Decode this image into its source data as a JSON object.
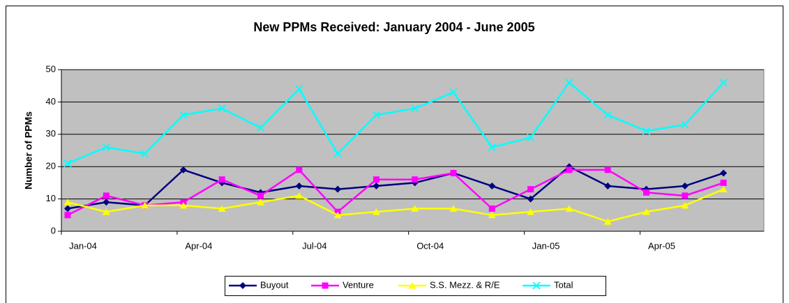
{
  "chart_data": {
    "type": "line",
    "title": "New PPMs Received: January 2004 - June 2005",
    "y_label": "Number of PPMs",
    "categories": [
      "Jan-04",
      null,
      null,
      "Apr-04",
      null,
      null,
      "Jul-04",
      null,
      null,
      "Oct-04",
      null,
      null,
      "Jan-05",
      null,
      null,
      "Apr-05",
      null,
      null
    ],
    "series": [
      {
        "name": "Buyout",
        "color": "#000080",
        "marker": "diamond",
        "values": [
          7,
          9,
          8,
          19,
          15,
          12,
          14,
          13,
          14,
          15,
          18,
          14,
          10,
          20,
          14,
          13,
          14,
          18
        ]
      },
      {
        "name": "Venture",
        "color": "#ff00ff",
        "marker": "square",
        "values": [
          5,
          11,
          8,
          9,
          16,
          11,
          19,
          6,
          16,
          16,
          18,
          7,
          13,
          19,
          19,
          12,
          11,
          15
        ]
      },
      {
        "name": "S.S. Mezz. & R/E",
        "color": "#ffff00",
        "marker": "triangle",
        "values": [
          9,
          6,
          8,
          8,
          7,
          9,
          11,
          5,
          6,
          7,
          7,
          5,
          6,
          7,
          3,
          6,
          8,
          13
        ]
      },
      {
        "name": "Total",
        "color": "#00ffff",
        "marker": "x",
        "values": [
          21,
          26,
          24,
          36,
          38,
          32,
          44,
          24,
          36,
          38,
          43,
          26,
          29,
          46,
          36,
          31,
          33,
          46
        ]
      }
    ],
    "ylim": [
      0,
      50
    ],
    "yticks": [
      0,
      10,
      20,
      30,
      40,
      50
    ],
    "grid": true,
    "legend": "bottom",
    "plot_background": "#c0c0c0"
  }
}
